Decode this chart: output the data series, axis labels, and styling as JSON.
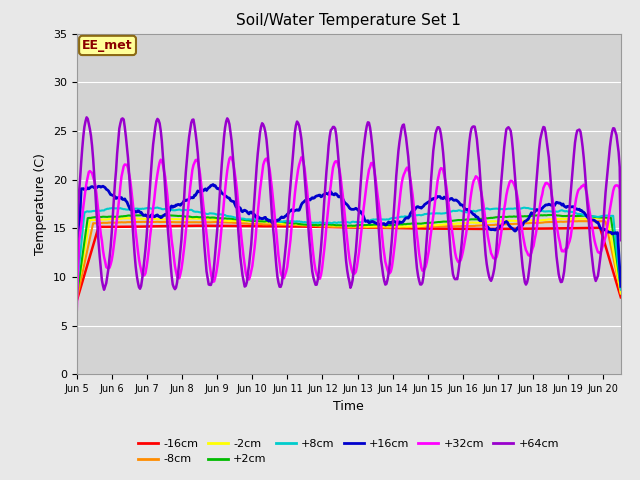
{
  "title": "Soil/Water Temperature Set 1",
  "xlabel": "Time",
  "ylabel": "Temperature (C)",
  "ylim": [
    0,
    35
  ],
  "yticks": [
    0,
    5,
    10,
    15,
    20,
    25,
    30,
    35
  ],
  "fig_bg_color": "#e8e8e8",
  "ax_bg_color": "#d3d3d3",
  "label_box_text": "EE_met",
  "label_box_bg": "#ffff99",
  "label_box_border": "#8b6914",
  "label_box_text_color": "#8b0000",
  "series_colors": {
    "-16cm": "#ff0000",
    "-8cm": "#ff8c00",
    "-2cm": "#ffff00",
    "+2cm": "#00bb00",
    "+8cm": "#00cccc",
    "+16cm": "#0000cc",
    "+32cm": "#ff00ff",
    "+64cm": "#9900cc"
  },
  "legend_order": [
    "-16cm",
    "-8cm",
    "-2cm",
    "+2cm",
    "+8cm",
    "+16cm",
    "+32cm",
    "+64cm"
  ],
  "x_tick_labels": [
    "Jun 5",
    "Jun 6",
    "Jun 7",
    "Jun 8",
    "Jun 9",
    "Jun 10",
    "Jun 11",
    "Jun 12",
    "Jun 13",
    "Jun 14",
    "Jun 15",
    "Jun 16",
    "Jun 17",
    "Jun 18",
    "Jun 19",
    "Jun 20"
  ]
}
